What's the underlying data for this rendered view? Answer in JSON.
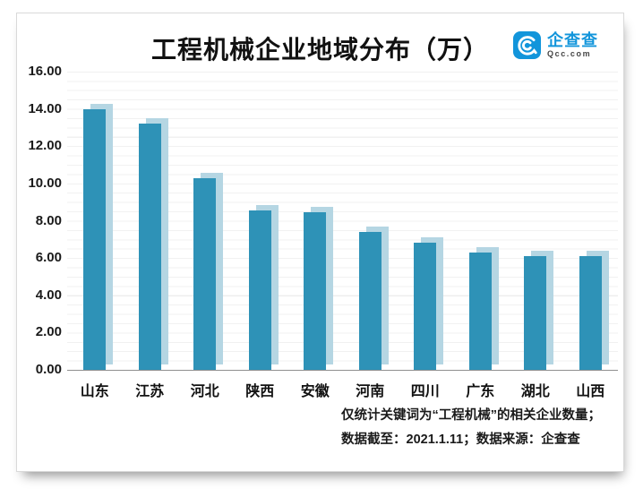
{
  "logo": {
    "name": "企查查",
    "domain": "Qcc.com",
    "brand_color": "#1295db"
  },
  "footnote": {
    "line1": "仅统计关键词为“工程机械”的相关企业数量；",
    "line2": "数据截至：2021.1.11；数据来源：企查查"
  },
  "chart_data": {
    "type": "bar",
    "title": "工程机械企业地域分布（万）",
    "categories": [
      "山东",
      "江苏",
      "河北",
      "陕西",
      "安徽",
      "河南",
      "四川",
      "广东",
      "湖北",
      "山西"
    ],
    "values": [
      14.0,
      13.2,
      10.3,
      8.55,
      8.45,
      7.4,
      6.8,
      6.3,
      6.1,
      6.1
    ],
    "xlabel": "",
    "ylabel": "",
    "ylim": [
      0,
      16
    ],
    "ytick_step": 2,
    "ytick_labels": [
      "16.00",
      "14.00",
      "12.00",
      "10.00",
      "8.00",
      "6.00",
      "4.00",
      "2.00",
      "0.00"
    ],
    "minor_grid_step": 0.5,
    "grid": true,
    "legend": "none",
    "bar_color": "#2e92b7",
    "bar_shadow_color": "#b5d6e3",
    "bar_shadow_offset": "up-right"
  }
}
